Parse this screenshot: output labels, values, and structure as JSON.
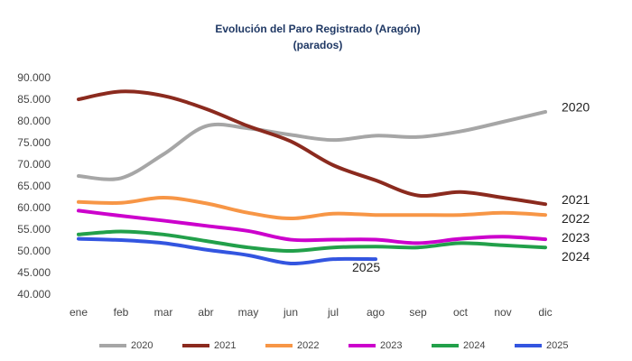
{
  "chart_data": {
    "type": "line",
    "title": "Evolución del Paro Registrado (Aragón)",
    "subtitle": "(parados)",
    "categories": [
      "ene",
      "feb",
      "mar",
      "abr",
      "may",
      "jun",
      "jul",
      "ago",
      "sep",
      "oct",
      "nov",
      "dic"
    ],
    "ylim": [
      40000,
      90000
    ],
    "yticks": [
      {
        "value": 40000,
        "label": "40.000"
      },
      {
        "value": 45000,
        "label": "45.000"
      },
      {
        "value": 50000,
        "label": "50.000"
      },
      {
        "value": 55000,
        "label": "55.000"
      },
      {
        "value": 60000,
        "label": "60.000"
      },
      {
        "value": 65000,
        "label": "65.000"
      },
      {
        "value": 70000,
        "label": "70.000"
      },
      {
        "value": 75000,
        "label": "75.000"
      },
      {
        "value": 80000,
        "label": "80.000"
      },
      {
        "value": 85000,
        "label": "85.000"
      },
      {
        "value": 90000,
        "label": "90.000"
      }
    ],
    "grid": false,
    "series": [
      {
        "name": "2020",
        "color": "#a6a6a6",
        "values": [
          67500,
          67000,
          72500,
          79000,
          78500,
          77000,
          75800,
          76800,
          76500,
          77800,
          80000,
          82300
        ]
      },
      {
        "name": "2021",
        "color": "#8b2a1e",
        "values": [
          85200,
          87000,
          86000,
          83000,
          79000,
          75500,
          70000,
          66500,
          63000,
          63800,
          62500,
          61000
        ]
      },
      {
        "name": "2022",
        "color": "#f79646",
        "values": [
          61500,
          61300,
          62500,
          61200,
          59000,
          57700,
          58800,
          58500,
          58500,
          58500,
          59000,
          58500
        ]
      },
      {
        "name": "2023",
        "color": "#cc00cc",
        "values": [
          59500,
          58300,
          57200,
          56000,
          54800,
          52800,
          52800,
          52800,
          52000,
          53000,
          53500,
          52900
        ]
      },
      {
        "name": "2024",
        "color": "#22a04a",
        "values": [
          54000,
          54700,
          54000,
          52500,
          51000,
          50200,
          51000,
          51200,
          51000,
          52000,
          51500,
          51000
        ]
      },
      {
        "name": "2025",
        "color": "#3355e0",
        "values": [
          53000,
          52700,
          52000,
          50500,
          49200,
          47300,
          48300,
          48300,
          null,
          null,
          null,
          null
        ]
      }
    ]
  }
}
